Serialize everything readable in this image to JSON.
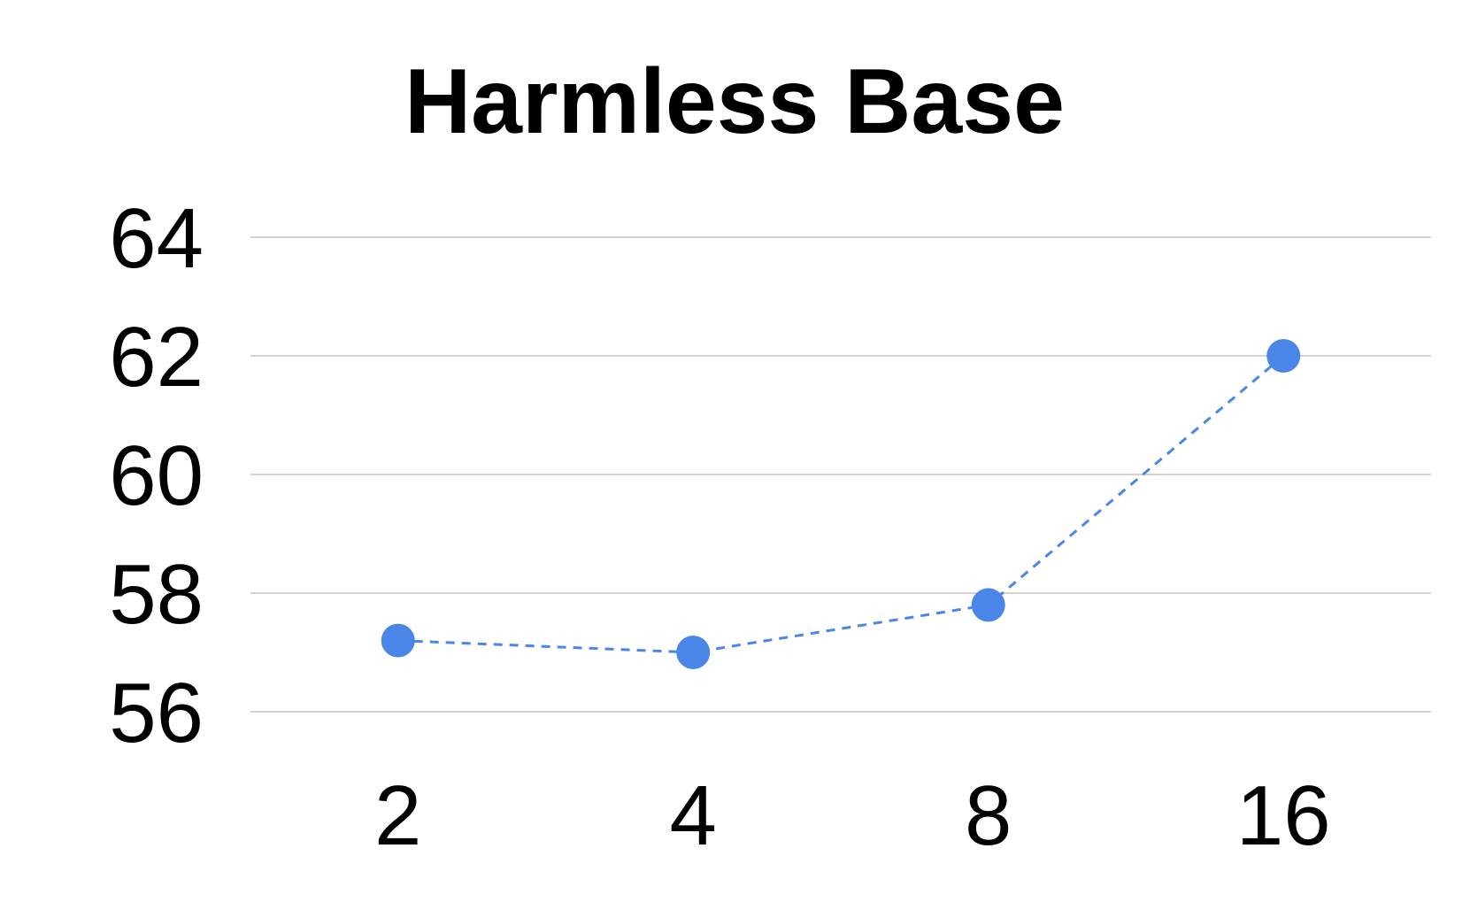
{
  "chart_data": {
    "type": "line",
    "title": "Harmless Base",
    "xlabel": "",
    "ylabel": "",
    "categories": [
      "2",
      "4",
      "8",
      "16"
    ],
    "series": [
      {
        "values": [
          57.2,
          57.0,
          57.8,
          62.0
        ],
        "color": "#4a86e8",
        "line_style": "dashed",
        "marker": "circle"
      }
    ],
    "ylim": [
      56,
      64
    ],
    "yticks": [
      56,
      58,
      60,
      62,
      64
    ],
    "grid": true,
    "legend": "none"
  }
}
